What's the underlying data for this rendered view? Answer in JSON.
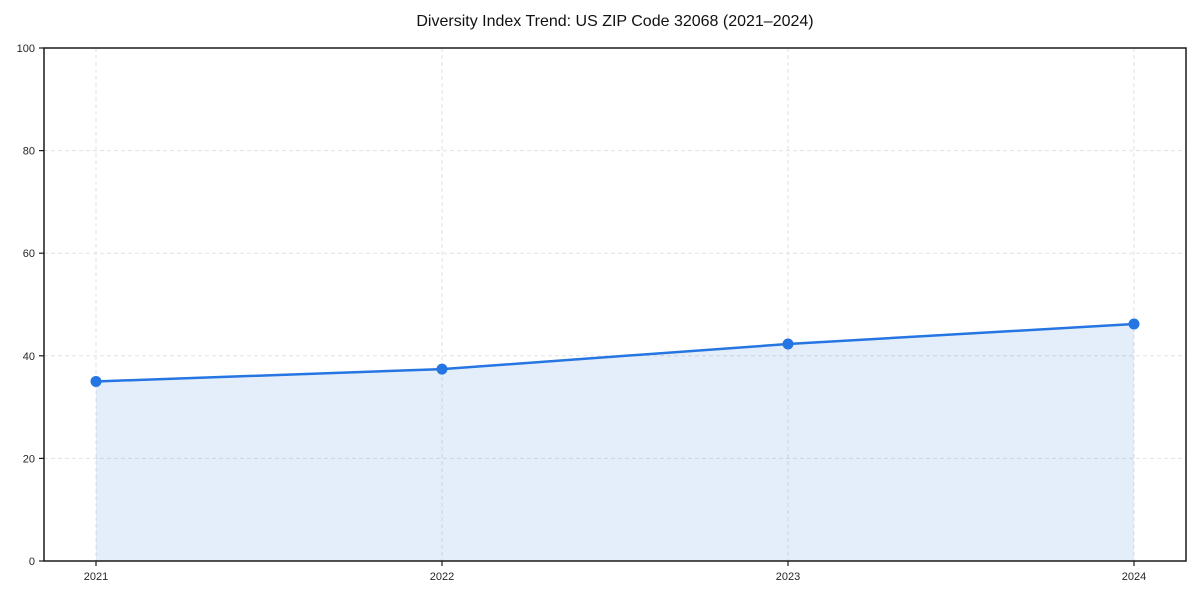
{
  "page": {
    "background": "#ffffff"
  },
  "chart_data": {
    "type": "area",
    "title": "Diversity Index Trend: US ZIP Code 32068 (2021–2024)",
    "categories": [
      "2021",
      "2022",
      "2023",
      "2024"
    ],
    "series": [
      {
        "name": "Diversity Index",
        "values": [
          35.0,
          37.4,
          42.3,
          46.2
        ]
      }
    ],
    "xlabel": "",
    "ylabel": "",
    "ylim": [
      0,
      100
    ],
    "yticks": [
      0,
      20,
      40,
      60,
      80,
      100
    ],
    "grid": true,
    "grid_style": "dashed",
    "legend": "none",
    "marker": "circle",
    "style": {
      "line_color": "#2575e2",
      "marker_color": "#2575e2",
      "fill_color": "#2575e2",
      "fill_opacity": 0.12,
      "grid_color": "#e2e2e2",
      "axis_color": "#1a1a1a",
      "text_color": "#262626",
      "title_color": "#111111",
      "background": "#ffffff"
    }
  }
}
